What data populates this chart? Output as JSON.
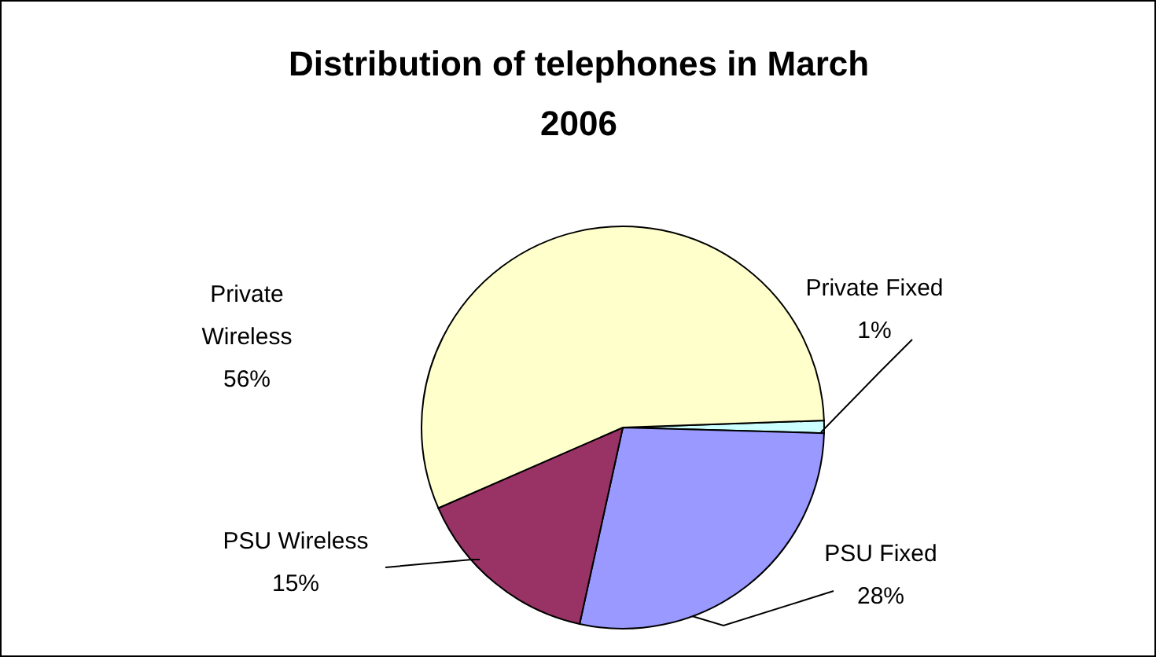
{
  "chart_data": {
    "type": "pie",
    "title": "Distribution of telephones in March 2006",
    "categories": [
      "Private Fixed",
      "PSU Fixed",
      "PSU Wireless",
      "Private Wireless"
    ],
    "values": [
      1,
      28,
      15,
      56
    ],
    "value_labels": [
      "1%",
      "28%",
      "15%",
      "56%"
    ],
    "colors": [
      "#ccffff",
      "#9999ff",
      "#993366",
      "#ffffcc"
    ]
  }
}
